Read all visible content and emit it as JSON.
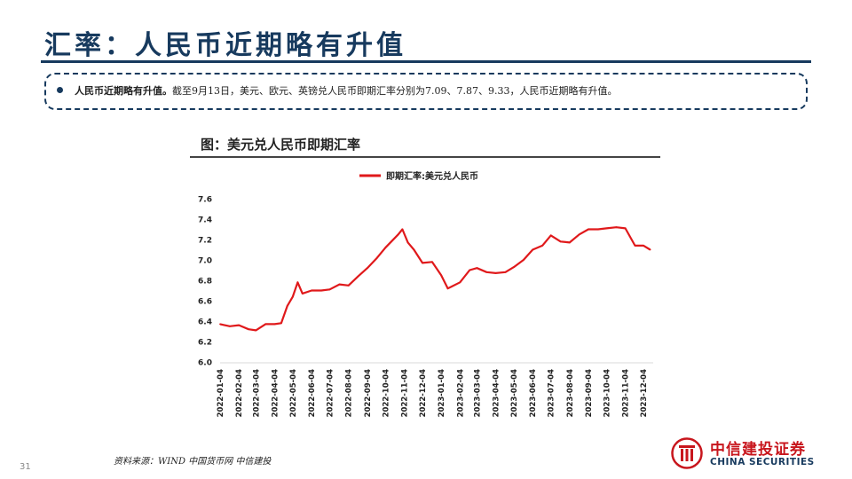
{
  "header": {
    "title": "汇率：人民币近期略有升值"
  },
  "summary": {
    "lead": "人民币近期略有升值。",
    "body": "截至9月13日，美元、欧元、英镑兑人民币即期汇率分别为7.09、7.87、9.33，人民币近期略有升值。"
  },
  "chart_title": "图：美元兑人民币即期汇率",
  "source": "资料来源：WIND  中国货币网  中信建投",
  "page_number": "31",
  "brand": {
    "name_cn": "中信建投证券",
    "name_en": "CHINA SECURITIES"
  },
  "colors": {
    "accent": "#173a5e",
    "series": "#e0191b",
    "brand_red": "#c8161d"
  },
  "chart_data": {
    "type": "line",
    "title": "",
    "xlabel": "",
    "ylabel": "",
    "ylim": [
      6.0,
      7.6
    ],
    "yticks": [
      "6.0",
      "6.2",
      "6.4",
      "6.6",
      "6.8",
      "7.0",
      "7.2",
      "7.4",
      "7.6"
    ],
    "grid": false,
    "legend_position": "top-center",
    "x_tick_labels": [
      "2022-01-04",
      "2022-02-04",
      "2022-03-04",
      "2022-04-04",
      "2022-05-04",
      "2022-06-04",
      "2022-07-04",
      "2022-08-04",
      "2022-09-04",
      "2022-10-04",
      "2022-11-04",
      "2022-12-04",
      "2023-01-04",
      "2023-02-04",
      "2023-03-04",
      "2023-04-04",
      "2023-05-04",
      "2023-06-04",
      "2023-07-04",
      "2023-08-04",
      "2023-09-04",
      "2023-10-04",
      "2023-11-04",
      "2023-12-04"
    ],
    "series": [
      {
        "name": "即期汇率:美元兑人民币",
        "x": [
          "2022-01-04",
          "2022-01-20",
          "2022-02-04",
          "2022-02-20",
          "2022-03-04",
          "2022-03-20",
          "2022-04-04",
          "2022-04-15",
          "2022-04-25",
          "2022-05-04",
          "2022-05-12",
          "2022-05-20",
          "2022-06-04",
          "2022-06-20",
          "2022-07-04",
          "2022-07-20",
          "2022-08-04",
          "2022-08-20",
          "2022-09-04",
          "2022-09-20",
          "2022-10-04",
          "2022-10-25",
          "2022-11-01",
          "2022-11-10",
          "2022-11-20",
          "2022-12-04",
          "2022-12-20",
          "2023-01-04",
          "2023-01-15",
          "2023-02-04",
          "2023-02-20",
          "2023-03-04",
          "2023-03-20",
          "2023-04-04",
          "2023-04-20",
          "2023-05-04",
          "2023-05-20",
          "2023-06-04",
          "2023-06-20",
          "2023-07-04",
          "2023-07-20",
          "2023-08-04",
          "2023-08-20",
          "2023-09-04",
          "2023-09-20",
          "2023-10-04",
          "2023-10-20",
          "2023-11-04",
          "2023-11-20",
          "2023-12-04",
          "2023-12-15"
        ],
        "values": [
          6.37,
          6.35,
          6.36,
          6.32,
          6.31,
          6.37,
          6.37,
          6.38,
          6.55,
          6.64,
          6.78,
          6.67,
          6.7,
          6.7,
          6.71,
          6.76,
          6.75,
          6.84,
          6.92,
          7.02,
          7.12,
          7.25,
          7.3,
          7.17,
          7.1,
          6.97,
          6.98,
          6.85,
          6.72,
          6.78,
          6.9,
          6.92,
          6.88,
          6.87,
          6.88,
          6.93,
          7.0,
          7.1,
          7.14,
          7.24,
          7.18,
          7.17,
          7.25,
          7.3,
          7.3,
          7.31,
          7.32,
          7.31,
          7.14,
          7.14,
          7.1
        ]
      }
    ]
  }
}
